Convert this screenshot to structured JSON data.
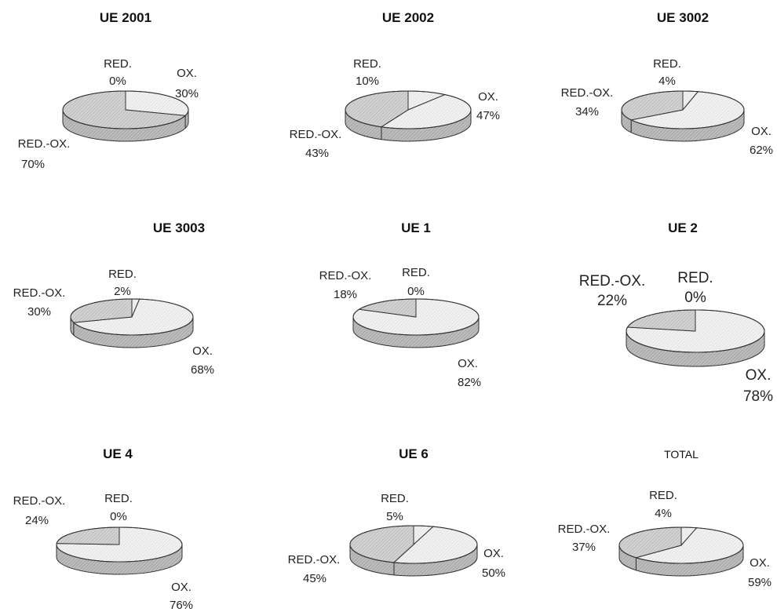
{
  "chart_data": [
    {
      "type": "pie",
      "title": "UE 2001",
      "categories": [
        "RED.",
        "OX.",
        "RED.-OX."
      ],
      "values": [
        0,
        30,
        70
      ]
    },
    {
      "type": "pie",
      "title": "UE 2002",
      "categories": [
        "RED.",
        "OX.",
        "RED.-OX."
      ],
      "values": [
        10,
        47,
        43
      ]
    },
    {
      "type": "pie",
      "title": "UE 3002",
      "categories": [
        "RED.",
        "OX.",
        "RED.-OX."
      ],
      "values": [
        4,
        62,
        34
      ]
    },
    {
      "type": "pie",
      "title": "UE 3003",
      "categories": [
        "RED.",
        "OX.",
        "RED.-OX."
      ],
      "values": [
        2,
        68,
        30
      ]
    },
    {
      "type": "pie",
      "title": "UE 1",
      "categories": [
        "RED.",
        "OX.",
        "RED.-OX."
      ],
      "values": [
        0,
        82,
        18
      ]
    },
    {
      "type": "pie",
      "title": "UE 2",
      "categories": [
        "RED.",
        "OX.",
        "RED.-OX."
      ],
      "values": [
        0,
        78,
        22
      ]
    },
    {
      "type": "pie",
      "title": "UE 4",
      "categories": [
        "RED.",
        "OX.",
        "RED.-OX."
      ],
      "values": [
        0,
        76,
        24
      ]
    },
    {
      "type": "pie",
      "title": "UE 6",
      "categories": [
        "RED.",
        "OX.",
        "RED.-OX."
      ],
      "values": [
        5,
        50,
        45
      ]
    },
    {
      "type": "pie",
      "title": "TOTAL",
      "categories": [
        "RED.",
        "OX.",
        "RED.-OX."
      ],
      "values": [
        4,
        59,
        37
      ]
    }
  ],
  "colors": {
    "ox_top": "#eeeeee",
    "redox_top": "#cfcfcf",
    "side_ox": "#b9b9b9",
    "side_redox": "#a9a9a9",
    "edge": "#333333"
  }
}
